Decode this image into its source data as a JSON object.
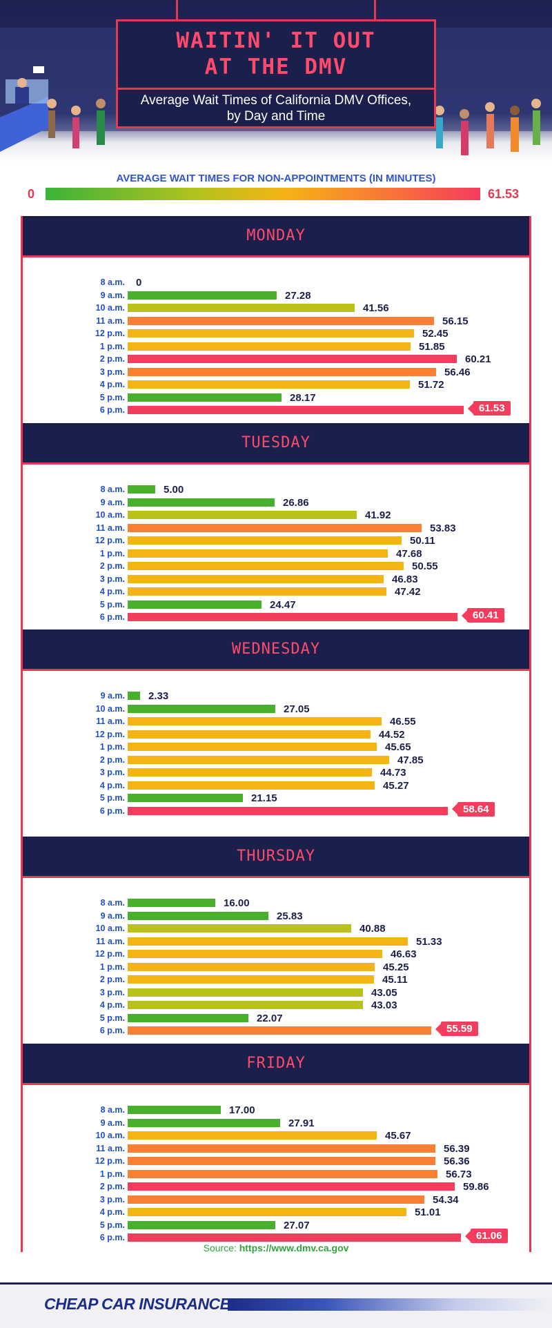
{
  "header": {
    "title_line1": "WAITIN' IT OUT",
    "title_line2": "AT THE DMV",
    "subtitle_line1": "Average Wait Times of California DMV Offices,",
    "subtitle_line2": "by Day and Time"
  },
  "scale": {
    "title": "AVERAGE WAIT TIMES FOR NON-APPOINTMENTS (IN MINUTES)",
    "min_label": "0",
    "max_label": "61.53",
    "min": 0,
    "max": 61.53
  },
  "colors": {
    "navy": "#1b1f4b",
    "red_accent": "#e8374f",
    "green": "#49b02d",
    "yellow_green": "#b8c21a",
    "yellow": "#f4b414",
    "orange": "#f97f32",
    "red": "#f33d5c",
    "label_blue": "#2050c0"
  },
  "chart_data": {
    "type": "bar",
    "orientation": "horizontal",
    "xlim": [
      0,
      61.53
    ],
    "panels": [
      {
        "day": "MONDAY",
        "categories": [
          "8 a.m.",
          "9 a.m.",
          "10 a.m.",
          "11 a.m.",
          "12 p.m.",
          "1 p.m.",
          "2 p.m.",
          "3 p.m.",
          "4 p.m.",
          "5 p.m.",
          "6 p.m."
        ],
        "values": [
          0,
          27.28,
          41.56,
          56.15,
          52.45,
          51.85,
          60.21,
          56.46,
          51.72,
          28.17,
          61.53
        ],
        "value_labels": [
          "0",
          "27.28",
          "41.56",
          "56.15",
          "52.45",
          "51.85",
          "60.21",
          "56.46",
          "51.72",
          "28.17",
          "61.53"
        ]
      },
      {
        "day": "TUESDAY",
        "categories": [
          "8 a.m.",
          "9 a.m.",
          "10 a.m.",
          "11 a.m.",
          "12 p.m.",
          "1 p.m.",
          "2 p.m.",
          "3 p.m.",
          "4 p.m.",
          "5 p.m.",
          "6 p.m."
        ],
        "values": [
          5.0,
          26.86,
          41.92,
          53.83,
          50.11,
          47.68,
          50.55,
          46.83,
          47.42,
          24.47,
          60.41
        ],
        "value_labels": [
          "5.00",
          "26.86",
          "41.92",
          "53.83",
          "50.11",
          "47.68",
          "50.55",
          "46.83",
          "47.42",
          "24.47",
          "60.41"
        ]
      },
      {
        "day": "WEDNESDAY",
        "categories": [
          "9 a.m.",
          "10 a.m.",
          "11 a.m.",
          "12 p.m.",
          "1 p.m.",
          "2 p.m.",
          "3 p.m.",
          "4 p.m.",
          "5 p.m.",
          "6 p.m."
        ],
        "values": [
          2.33,
          27.05,
          46.55,
          44.52,
          45.65,
          47.85,
          44.73,
          45.27,
          21.15,
          58.64
        ],
        "value_labels": [
          "2.33",
          "27.05",
          "46.55",
          "44.52",
          "45.65",
          "47.85",
          "44.73",
          "45.27",
          "21.15",
          "58.64"
        ]
      },
      {
        "day": "THURSDAY",
        "categories": [
          "8 a.m.",
          "9 a.m.",
          "10 a.m.",
          "11 a.m.",
          "12 p.m.",
          "1 p.m.",
          "2 p.m.",
          "3 p.m.",
          "4 p.m.",
          "5 p.m.",
          "6 p.m."
        ],
        "values": [
          16.0,
          25.83,
          40.88,
          51.33,
          46.63,
          45.25,
          45.11,
          43.05,
          43.03,
          22.07,
          55.59
        ],
        "value_labels": [
          "16.00",
          "25.83",
          "40.88",
          "51.33",
          "46.63",
          "45.25",
          "45.11",
          "43.05",
          "43.03",
          "22.07",
          "55.59"
        ]
      },
      {
        "day": "FRIDAY",
        "categories": [
          "8 a.m.",
          "9 a.m.",
          "10 a.m.",
          "11 a.m.",
          "12 p.m.",
          "1 p.m.",
          "2 p.m.",
          "3 p.m.",
          "4 p.m.",
          "5 p.m.",
          "6 p.m."
        ],
        "values": [
          17.0,
          27.91,
          45.67,
          56.39,
          56.36,
          56.73,
          59.86,
          54.34,
          51.01,
          27.07,
          61.06
        ],
        "value_labels": [
          "17.00",
          "27.91",
          "45.67",
          "56.39",
          "56.36",
          "56.73",
          "59.86",
          "54.34",
          "51.01",
          "27.07",
          "61.06"
        ]
      }
    ]
  },
  "footer": {
    "source_prefix": "Source: ",
    "source_url": "https://www.dmv.ca.gov",
    "brand": "CHEAP CAR INSURANCE"
  }
}
